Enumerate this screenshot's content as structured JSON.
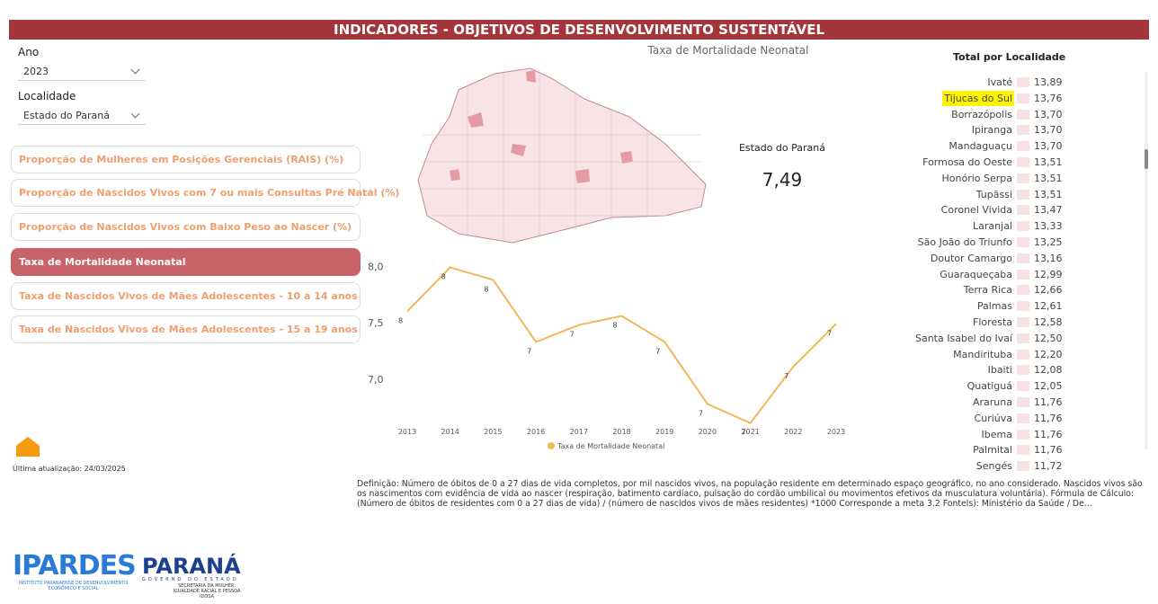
{
  "header": {
    "title": "INDICADORES - OBJETIVOS DE DESENVOLVIMENTO SUSTENTÁVEL"
  },
  "filters": {
    "year_label": "Ano",
    "year_value": "2023",
    "place_label": "Localidade",
    "place_value": "Estado do Paraná"
  },
  "indicators": {
    "selected": 3,
    "items": [
      "Proporção de Mulheres em Posições Gerenciais (RAIS) (%)",
      "Proporção de Nascidos Vivos com 7 ou mais Consultas Pré Natal (%)",
      "Proporção de Nascidos Vivos com Baixo Peso ao Nascer (%)",
      "Taxa de Mortalidade Neonatal",
      "Taxa de Nascidos Vivos de Mães Adolescentes - 10 a 14 anos",
      "Taxa de Nascidos Vivos de Mães Adolescentes - 15 a 19 anos"
    ]
  },
  "updated": "Última atualização: 24/03/2025",
  "map": {
    "title": "Taxa de Mortalidade Neonatal"
  },
  "kpi": {
    "label": "Estado do Paraná",
    "value": "7,49"
  },
  "chart_data": {
    "type": "line",
    "categories": [
      "2013",
      "2014",
      "2015",
      "2016",
      "2017",
      "2018",
      "2019",
      "2020",
      "2021",
      "2022",
      "2023"
    ],
    "series": [
      {
        "name": "Taxa de Mortalidade Neonatal",
        "color": "#f5b55a",
        "values": [
          7.6,
          7.99,
          7.88,
          7.33,
          7.48,
          7.56,
          7.33,
          6.78,
          6.61,
          7.11,
          7.49
        ],
        "value_labels": [
          "8",
          "8",
          "8",
          "7",
          "7",
          "8",
          "7",
          "7",
          "7",
          "7",
          "7"
        ]
      }
    ],
    "ylim": [
      6.6,
      8.05
    ],
    "yticks": [
      {
        "value": 7,
        "label": "7,0"
      },
      {
        "value": 7.5,
        "label": "7,5"
      },
      {
        "value": 8,
        "label": "8,0"
      }
    ],
    "legend": "bottom"
  },
  "ranking": {
    "title": "Total por Localidade",
    "highlighted": 1,
    "rows": [
      [
        "Ivaté",
        "13,89"
      ],
      [
        "Tijucas do Sul",
        "13,76"
      ],
      [
        "Borrazópolis",
        "13,70"
      ],
      [
        "Ipiranga",
        "13,70"
      ],
      [
        "Mandaguaçu",
        "13,70"
      ],
      [
        "Formosa do Oeste",
        "13,51"
      ],
      [
        "Honório Serpa",
        "13,51"
      ],
      [
        "Tupãssi",
        "13,51"
      ],
      [
        "Coronel Vivida",
        "13,47"
      ],
      [
        "Laranjal",
        "13,33"
      ],
      [
        "São João do Triunfo",
        "13,25"
      ],
      [
        "Doutor Camargo",
        "13,16"
      ],
      [
        "Guaraqueçaba",
        "12,99"
      ],
      [
        "Terra Rica",
        "12,66"
      ],
      [
        "Palmas",
        "12,61"
      ],
      [
        "Floresta",
        "12,58"
      ],
      [
        "Santa Isabel do Ivaí",
        "12,50"
      ],
      [
        "Mandirituba",
        "12,20"
      ],
      [
        "Ibaiti",
        "12,08"
      ],
      [
        "Quatiguá",
        "12,05"
      ],
      [
        "Araruna",
        "11,76"
      ],
      [
        "Curiúva",
        "11,76"
      ],
      [
        "Ibema",
        "11,76"
      ],
      [
        "Palmital",
        "11,76"
      ],
      [
        "Sengés",
        "11,72"
      ]
    ]
  },
  "definition": "Definição: Número de óbitos de 0 a 27 dias de vida completos, por mil nascidos vivos, na população residente em determinado espaço geográfico, no ano considerado. Nascidos vivos são os nascimentos com evidência de vida ao nascer (respiração, batimento cardíaco, pulsação do cordão umbilical ou movimentos efetivos da musculatura voluntária). Fórmula de Cálculo: (Número de óbitos de residentes com 0 a 27 dias de vida) / (número de nascidos vivos de mães residentes) *1000 Corresponde a meta 3.2 Fontels): Ministério da Saúde / De...",
  "logos": {
    "ipardes": "IPARDES",
    "ipardes_sub": "INSTITUTO PARANAENSE DE DESENVOLVIMENTO ECONÔMICO E SOCIAL",
    "parana": "PARANÁ",
    "parana_sub": "GOVERNO DO ESTADO",
    "secretaria": "SECRETARIA DA MULHER, IGUALDADE RACIAL E PESSOA IDOSA"
  }
}
